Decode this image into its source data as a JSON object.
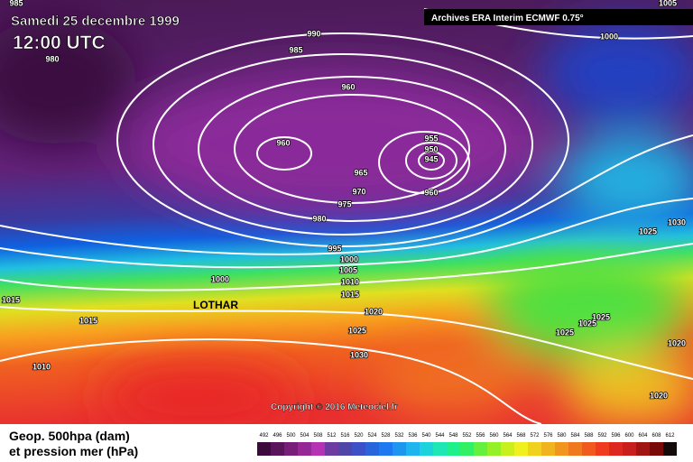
{
  "header": {
    "date": "Samedi 25 decembre 1999",
    "time": "12:00 UTC",
    "source": "Archives ERA Interim ECMWF 0.75°"
  },
  "annotation": "LOTHAR",
  "copyright": "Copyright © 2016 Meteociel.fr",
  "legend": {
    "line1": "Geop. 500hpa (dam)",
    "line2": "et pression mer (hPa)"
  },
  "isobar_labels": [
    "985",
    "980",
    "990",
    "985",
    "960",
    "960",
    "955",
    "950",
    "945",
    "960",
    "965",
    "970",
    "975",
    "980",
    "995",
    "1000",
    "1005",
    "1010",
    "1015",
    "1020",
    "1025",
    "1030",
    "1000",
    "1015",
    "1015",
    "1010",
    "1000",
    "1005",
    "1030",
    "1025",
    "1025",
    "1025",
    "1025",
    "1020",
    "1020"
  ],
  "colorbar": {
    "labels": [
      492,
      496,
      500,
      504,
      508,
      512,
      516,
      520,
      524,
      528,
      532,
      536,
      540,
      544,
      548,
      552,
      556,
      560,
      564,
      568,
      572,
      576,
      580,
      584,
      588,
      592,
      596,
      600,
      604,
      608,
      612
    ],
    "colors": [
      "#3c0a3c",
      "#5a145a",
      "#781e78",
      "#962896",
      "#b432b4",
      "#6e3ca0",
      "#5046aa",
      "#3c50c8",
      "#2864dc",
      "#1e78f0",
      "#1e96f0",
      "#1eb4f0",
      "#1ed2dc",
      "#1ee6b4",
      "#1ef08c",
      "#32f064",
      "#64f03c",
      "#96f028",
      "#c8f01e",
      "#f0f01e",
      "#f0d21e",
      "#f0b41e",
      "#f0961e",
      "#f0781e",
      "#f05a1e",
      "#f03c1e",
      "#dc281e",
      "#c81e1e",
      "#a01414",
      "#780a0a",
      "#140a0a"
    ]
  }
}
